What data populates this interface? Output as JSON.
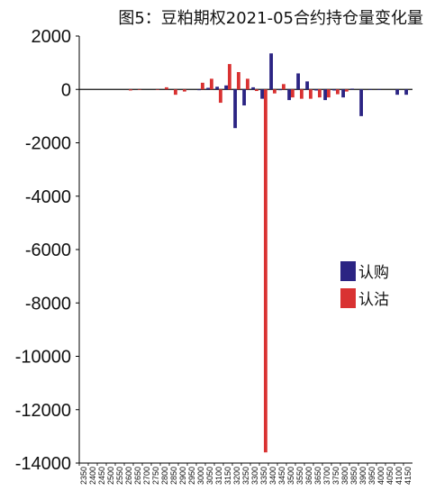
{
  "chart_data": {
    "type": "bar",
    "title": "图5：豆粕期权2021-05合约持仓量变化量",
    "xlabel": "",
    "ylabel": "",
    "ylim": [
      -14000,
      2000
    ],
    "yticks": [
      2000,
      0,
      -2000,
      -4000,
      -6000,
      -8000,
      -10000,
      -12000,
      -14000
    ],
    "ytick_labels": [
      "2000",
      "0",
      "-2000",
      "-4000",
      "-6000",
      "-8000",
      "-10000",
      "-12000",
      "-14000"
    ],
    "grid": false,
    "legend_position": "right",
    "categories": [
      "2350",
      "2400",
      "2450",
      "2500",
      "2550",
      "2600",
      "2650",
      "2700",
      "2750",
      "2800",
      "2850",
      "2900",
      "2950",
      "3000",
      "3050",
      "3100",
      "3150",
      "3200",
      "3250",
      "3300",
      "3350",
      "3400",
      "3450",
      "3500",
      "3550",
      "3600",
      "3650",
      "3700",
      "3750",
      "3800",
      "3850",
      "3900",
      "3950",
      "4000",
      "4050",
      "4100",
      "4150"
    ],
    "series": [
      {
        "name": "认购",
        "color": "#2b2483",
        "values": [
          0,
          0,
          0,
          0,
          0,
          0,
          0,
          0,
          0,
          0,
          0,
          0,
          0,
          -30,
          60,
          100,
          150,
          -1450,
          -600,
          80,
          -350,
          1350,
          -30,
          -400,
          600,
          300,
          -40,
          -400,
          -40,
          -300,
          30,
          -1000,
          -20,
          -20,
          0,
          -200,
          -200
        ]
      },
      {
        "name": "认沽",
        "color": "#d93232",
        "values": [
          0,
          0,
          0,
          0,
          0,
          -40,
          -20,
          0,
          -20,
          80,
          -200,
          -80,
          0,
          250,
          400,
          -500,
          950,
          650,
          400,
          -60,
          -13600,
          -150,
          200,
          -300,
          -350,
          -350,
          -300,
          -300,
          -180,
          -80,
          0,
          0,
          0,
          0,
          0,
          0,
          0
        ]
      }
    ]
  }
}
